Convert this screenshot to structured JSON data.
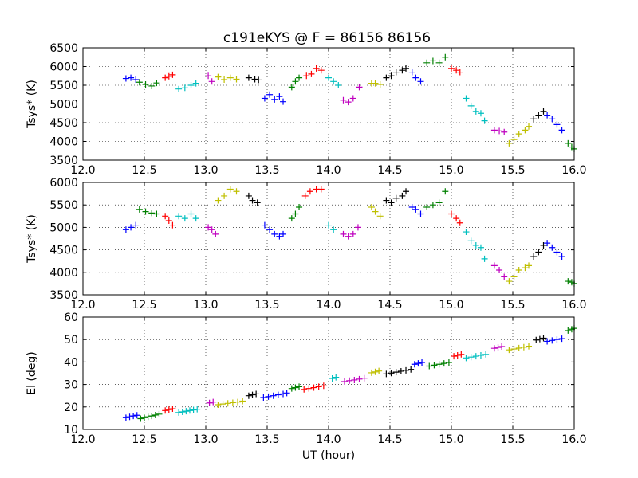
{
  "figure": {
    "title": "c191eKYS @ F = 86156 86156"
  },
  "chart_data": [
    {
      "type": "scatter",
      "marker": "plus",
      "ylabel": "Tsys* (K)",
      "xlabel": "",
      "xlim": [
        12.0,
        16.0
      ],
      "ylim": [
        3500,
        6500
      ],
      "xticks": [
        "12.0",
        "12.5",
        "13.0",
        "13.5",
        "14.0",
        "14.5",
        "15.0",
        "15.5",
        "16.0"
      ],
      "yticks": [
        "3500",
        "4000",
        "4500",
        "5000",
        "5500",
        "6000",
        "6500"
      ],
      "grid": true,
      "series": [
        {
          "color": "#0000ff",
          "x": [
            12.35,
            12.39,
            12.43
          ],
          "y": [
            5680,
            5700,
            5650
          ]
        },
        {
          "color": "#008000",
          "x": [
            12.46,
            12.51,
            12.56,
            12.6
          ],
          "y": [
            5580,
            5520,
            5480,
            5560
          ]
        },
        {
          "color": "#ff0000",
          "x": [
            12.67,
            12.7,
            12.73
          ],
          "y": [
            5700,
            5740,
            5780
          ]
        },
        {
          "color": "#00bfbf",
          "x": [
            12.78,
            12.83,
            12.88,
            12.92
          ],
          "y": [
            5400,
            5430,
            5500,
            5550
          ]
        },
        {
          "color": "#bf00bf",
          "x": [
            13.02,
            13.05
          ],
          "y": [
            5750,
            5600
          ]
        },
        {
          "color": "#bfbf00",
          "x": [
            13.1,
            13.15,
            13.2,
            13.25
          ],
          "y": [
            5720,
            5650,
            5700,
            5660
          ]
        },
        {
          "color": "#000000",
          "x": [
            13.35,
            13.4,
            13.43
          ],
          "y": [
            5700,
            5660,
            5640
          ]
        },
        {
          "color": "#0000ff",
          "x": [
            13.48,
            13.52,
            13.56,
            13.6,
            13.63
          ],
          "y": [
            5150,
            5250,
            5120,
            5200,
            5060
          ]
        },
        {
          "color": "#008000",
          "x": [
            13.7,
            13.73,
            13.76
          ],
          "y": [
            5450,
            5600,
            5700
          ]
        },
        {
          "color": "#ff0000",
          "x": [
            13.82,
            13.86,
            13.9,
            13.94
          ],
          "y": [
            5750,
            5800,
            5950,
            5900
          ]
        },
        {
          "color": "#00bfbf",
          "x": [
            14.0,
            14.04,
            14.08
          ],
          "y": [
            5700,
            5600,
            5500
          ]
        },
        {
          "color": "#bf00bf",
          "x": [
            14.12,
            14.16,
            14.2,
            14.25
          ],
          "y": [
            5100,
            5050,
            5150,
            5450
          ]
        },
        {
          "color": "#bfbf00",
          "x": [
            14.35,
            14.38,
            14.42
          ],
          "y": [
            5550,
            5550,
            5520
          ]
        },
        {
          "color": "#000000",
          "x": [
            14.47,
            14.51,
            14.55,
            14.6,
            14.63
          ],
          "y": [
            5700,
            5750,
            5850,
            5900,
            5950
          ]
        },
        {
          "color": "#0000ff",
          "x": [
            14.68,
            14.71,
            14.75
          ],
          "y": [
            5850,
            5700,
            5600
          ]
        },
        {
          "color": "#008000",
          "x": [
            14.8,
            14.85,
            14.9,
            14.95
          ],
          "y": [
            6100,
            6150,
            6100,
            6250
          ]
        },
        {
          "color": "#ff0000",
          "x": [
            15.0,
            15.04,
            15.07
          ],
          "y": [
            5950,
            5900,
            5850
          ]
        },
        {
          "color": "#00bfbf",
          "x": [
            15.12,
            15.16,
            15.2,
            15.24,
            15.27
          ],
          "y": [
            5150,
            4950,
            4800,
            4750,
            4550
          ]
        },
        {
          "color": "#bf00bf",
          "x": [
            15.35,
            15.39,
            15.43
          ],
          "y": [
            4300,
            4280,
            4250
          ]
        },
        {
          "color": "#bfbf00",
          "x": [
            15.47,
            15.51,
            15.55,
            15.6,
            15.63
          ],
          "y": [
            3950,
            4050,
            4200,
            4300,
            4400
          ]
        },
        {
          "color": "#000000",
          "x": [
            15.67,
            15.71,
            15.75
          ],
          "y": [
            4600,
            4700,
            4800
          ]
        },
        {
          "color": "#0000ff",
          "x": [
            15.78,
            15.82,
            15.86,
            15.9
          ],
          "y": [
            4700,
            4600,
            4450,
            4300
          ]
        },
        {
          "color": "#008000",
          "x": [
            15.95,
            15.98,
            16.0
          ],
          "y": [
            3950,
            3850,
            3800
          ]
        }
      ]
    },
    {
      "type": "scatter",
      "marker": "plus",
      "ylabel": "Tsys* (K)",
      "xlabel": "",
      "xlim": [
        12.0,
        16.0
      ],
      "ylim": [
        3500,
        6000
      ],
      "xticks": [
        "12.0",
        "12.5",
        "13.0",
        "13.5",
        "14.0",
        "14.5",
        "15.0",
        "15.5",
        "16.0"
      ],
      "yticks": [
        "3500",
        "4000",
        "4500",
        "5000",
        "5500",
        "6000"
      ],
      "grid": true,
      "series": [
        {
          "color": "#0000ff",
          "x": [
            12.35,
            12.39,
            12.43
          ],
          "y": [
            4950,
            5000,
            5050
          ]
        },
        {
          "color": "#008000",
          "x": [
            12.46,
            12.51,
            12.56,
            12.6
          ],
          "y": [
            5400,
            5350,
            5320,
            5300
          ]
        },
        {
          "color": "#ff0000",
          "x": [
            12.67,
            12.7,
            12.73
          ],
          "y": [
            5250,
            5150,
            5050
          ]
        },
        {
          "color": "#00bfbf",
          "x": [
            12.78,
            12.83,
            12.88,
            12.92
          ],
          "y": [
            5250,
            5200,
            5300,
            5200
          ]
        },
        {
          "color": "#bf00bf",
          "x": [
            13.02,
            13.05,
            13.08
          ],
          "y": [
            5000,
            4950,
            4850
          ]
        },
        {
          "color": "#bfbf00",
          "x": [
            13.1,
            13.15,
            13.2,
            13.25
          ],
          "y": [
            5600,
            5700,
            5850,
            5800
          ]
        },
        {
          "color": "#000000",
          "x": [
            13.35,
            13.38,
            13.42
          ],
          "y": [
            5700,
            5600,
            5550
          ]
        },
        {
          "color": "#0000ff",
          "x": [
            13.48,
            13.52,
            13.56,
            13.6,
            13.63
          ],
          "y": [
            5050,
            4950,
            4850,
            4800,
            4850
          ]
        },
        {
          "color": "#008000",
          "x": [
            13.7,
            13.73,
            13.76
          ],
          "y": [
            5200,
            5300,
            5450
          ]
        },
        {
          "color": "#ff0000",
          "x": [
            13.81,
            13.85,
            13.9,
            13.94
          ],
          "y": [
            5700,
            5800,
            5850,
            5850
          ]
        },
        {
          "color": "#00bfbf",
          "x": [
            14.0,
            14.04
          ],
          "y": [
            5050,
            4950
          ]
        },
        {
          "color": "#bf00bf",
          "x": [
            14.12,
            14.16,
            14.2,
            14.24
          ],
          "y": [
            4850,
            4800,
            4850,
            5000
          ]
        },
        {
          "color": "#bfbf00",
          "x": [
            14.35,
            14.38,
            14.42
          ],
          "y": [
            5450,
            5350,
            5250
          ]
        },
        {
          "color": "#000000",
          "x": [
            14.47,
            14.51,
            14.55,
            14.6,
            14.63
          ],
          "y": [
            5600,
            5550,
            5650,
            5700,
            5800
          ]
        },
        {
          "color": "#0000ff",
          "x": [
            14.68,
            14.71,
            14.75
          ],
          "y": [
            5450,
            5400,
            5300
          ]
        },
        {
          "color": "#008000",
          "x": [
            14.8,
            14.85,
            14.9,
            14.95
          ],
          "y": [
            5450,
            5500,
            5550,
            5800
          ]
        },
        {
          "color": "#ff0000",
          "x": [
            15.0,
            15.04,
            15.07
          ],
          "y": [
            5300,
            5200,
            5100
          ]
        },
        {
          "color": "#00bfbf",
          "x": [
            15.12,
            15.16,
            15.2,
            15.24,
            15.27
          ],
          "y": [
            4900,
            4700,
            4600,
            4550,
            4300
          ]
        },
        {
          "color": "#bf00bf",
          "x": [
            15.35,
            15.39,
            15.43
          ],
          "y": [
            4150,
            4050,
            3900
          ]
        },
        {
          "color": "#bfbf00",
          "x": [
            15.47,
            15.51,
            15.55,
            15.6,
            15.63
          ],
          "y": [
            3800,
            3900,
            4050,
            4100,
            4150
          ]
        },
        {
          "color": "#000000",
          "x": [
            15.67,
            15.71,
            15.75
          ],
          "y": [
            4350,
            4450,
            4600
          ]
        },
        {
          "color": "#0000ff",
          "x": [
            15.78,
            15.82,
            15.86,
            15.9
          ],
          "y": [
            4650,
            4550,
            4450,
            4350
          ]
        },
        {
          "color": "#008000",
          "x": [
            15.95,
            15.98,
            16.0
          ],
          "y": [
            3800,
            3780,
            3750
          ]
        }
      ]
    },
    {
      "type": "scatter",
      "marker": "plus",
      "ylabel": "El (deg)",
      "xlabel": "UT (hour)",
      "xlim": [
        12.0,
        16.0
      ],
      "ylim": [
        10,
        60
      ],
      "xticks": [
        "12.0",
        "12.5",
        "13.0",
        "13.5",
        "14.0",
        "14.5",
        "15.0",
        "15.5",
        "16.0"
      ],
      "yticks": [
        "10",
        "20",
        "30",
        "40",
        "50",
        "60"
      ],
      "grid": true,
      "series": [
        {
          "color": "#0000ff",
          "x": [
            12.35,
            12.38,
            12.41,
            12.44
          ],
          "y": [
            15.2,
            15.6,
            16.0,
            16.3
          ]
        },
        {
          "color": "#008000",
          "x": [
            12.47,
            12.5,
            12.53,
            12.56,
            12.59,
            12.62
          ],
          "y": [
            14.8,
            15.2,
            15.6,
            16.0,
            16.4,
            16.8
          ]
        },
        {
          "color": "#ff0000",
          "x": [
            12.67,
            12.7,
            12.73
          ],
          "y": [
            18.4,
            18.8,
            19.2
          ]
        },
        {
          "color": "#00bfbf",
          "x": [
            12.78,
            12.81,
            12.84,
            12.87,
            12.9,
            12.93
          ],
          "y": [
            17.5,
            17.8,
            18.1,
            18.4,
            18.7,
            19.0
          ]
        },
        {
          "color": "#bf00bf",
          "x": [
            13.03,
            13.06
          ],
          "y": [
            21.8,
            22.2
          ]
        },
        {
          "color": "#bfbf00",
          "x": [
            13.1,
            13.14,
            13.18,
            13.22,
            13.26,
            13.3
          ],
          "y": [
            21.0,
            21.3,
            21.6,
            21.9,
            22.2,
            22.6
          ]
        },
        {
          "color": "#000000",
          "x": [
            13.35,
            13.38,
            13.41
          ],
          "y": [
            25.0,
            25.4,
            25.8
          ]
        },
        {
          "color": "#0000ff",
          "x": [
            13.47,
            13.51,
            13.55,
            13.59,
            13.63,
            13.66
          ],
          "y": [
            24.2,
            24.6,
            25.0,
            25.4,
            25.8,
            26.2
          ]
        },
        {
          "color": "#008000",
          "x": [
            13.7,
            13.73,
            13.76
          ],
          "y": [
            28.2,
            28.6,
            29.0
          ]
        },
        {
          "color": "#ff0000",
          "x": [
            13.8,
            13.84,
            13.88,
            13.92,
            13.96
          ],
          "y": [
            27.8,
            28.2,
            28.6,
            29.0,
            29.4
          ]
        },
        {
          "color": "#00bfbf",
          "x": [
            14.03,
            14.06
          ],
          "y": [
            32.7,
            33.2
          ]
        },
        {
          "color": "#bf00bf",
          "x": [
            14.13,
            14.17,
            14.21,
            14.25,
            14.29
          ],
          "y": [
            31.3,
            31.7,
            32.0,
            32.4,
            32.8
          ]
        },
        {
          "color": "#bfbf00",
          "x": [
            14.35,
            14.38,
            14.41
          ],
          "y": [
            35.2,
            35.6,
            36.0
          ]
        },
        {
          "color": "#000000",
          "x": [
            14.47,
            14.51,
            14.55,
            14.59,
            14.63,
            14.67
          ],
          "y": [
            34.7,
            35.1,
            35.5,
            35.9,
            36.3,
            36.7
          ]
        },
        {
          "color": "#0000ff",
          "x": [
            14.7,
            14.73,
            14.76
          ],
          "y": [
            39.0,
            39.4,
            39.8
          ]
        },
        {
          "color": "#008000",
          "x": [
            14.82,
            14.86,
            14.9,
            14.94,
            14.98
          ],
          "y": [
            38.2,
            38.6,
            39.0,
            39.4,
            39.8
          ]
        },
        {
          "color": "#ff0000",
          "x": [
            15.02,
            15.05,
            15.08
          ],
          "y": [
            42.6,
            43.0,
            43.4
          ]
        },
        {
          "color": "#00bfbf",
          "x": [
            15.12,
            15.16,
            15.2,
            15.24,
            15.28
          ],
          "y": [
            41.8,
            42.2,
            42.6,
            43.0,
            43.4
          ]
        },
        {
          "color": "#bf00bf",
          "x": [
            15.35,
            15.38,
            15.41
          ],
          "y": [
            46.1,
            46.5,
            46.9
          ]
        },
        {
          "color": "#bfbf00",
          "x": [
            15.47,
            15.51,
            15.55,
            15.59,
            15.63
          ],
          "y": [
            45.4,
            45.8,
            46.2,
            46.6,
            47.0
          ]
        },
        {
          "color": "#000000",
          "x": [
            15.69,
            15.72,
            15.75
          ],
          "y": [
            49.8,
            50.2,
            50.6
          ]
        },
        {
          "color": "#0000ff",
          "x": [
            15.78,
            15.82,
            15.86,
            15.9
          ],
          "y": [
            49.2,
            49.6,
            50.0,
            50.4
          ]
        },
        {
          "color": "#008000",
          "x": [
            15.95,
            15.98,
            16.0
          ],
          "y": [
            54.0,
            54.6,
            55.0
          ]
        }
      ]
    }
  ]
}
